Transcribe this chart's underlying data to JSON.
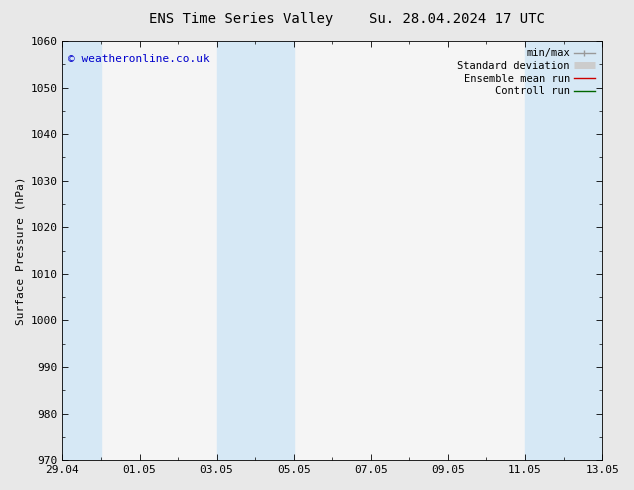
{
  "title_left": "ENS Time Series Valley",
  "title_right": "Su. 28.04.2024 17 UTC",
  "ylabel": "Surface Pressure (hPa)",
  "ylim": [
    970,
    1060
  ],
  "yticks": [
    970,
    980,
    990,
    1000,
    1010,
    1020,
    1030,
    1040,
    1050,
    1060
  ],
  "xlabels": [
    "29.04",
    "01.05",
    "03.05",
    "05.05",
    "07.05",
    "09.05",
    "11.05",
    "13.05"
  ],
  "xtick_positions": [
    0,
    2,
    4,
    6,
    8,
    10,
    12,
    14
  ],
  "xlim": [
    0,
    14
  ],
  "shaded_regions": [
    {
      "x_start": 4.0,
      "x_end": 6.0
    },
    {
      "x_start": 12.0,
      "x_end": 14.0
    }
  ],
  "left_shaded": {
    "x_start": 0.0,
    "x_end": 1.0
  },
  "shaded_color": "#d6e8f5",
  "background_color": "#e8e8e8",
  "plot_bg_color": "#f5f5f5",
  "watermark_text": "© weatheronline.co.uk",
  "watermark_color": "#0000cc",
  "legend_entries": [
    {
      "label": "min/max",
      "color": "#999999",
      "lw": 1.0
    },
    {
      "label": "Standard deviation",
      "color": "#cccccc",
      "lw": 5
    },
    {
      "label": "Ensemble mean run",
      "color": "#cc0000",
      "lw": 1.0
    },
    {
      "label": "Controll run",
      "color": "#006600",
      "lw": 1.0
    }
  ],
  "font_size_title": 10,
  "font_size_legend": 7.5,
  "font_size_axis": 8,
  "font_size_watermark": 8,
  "tick_color": "#000000",
  "border_color": "#000000",
  "spine_lw": 0.6
}
